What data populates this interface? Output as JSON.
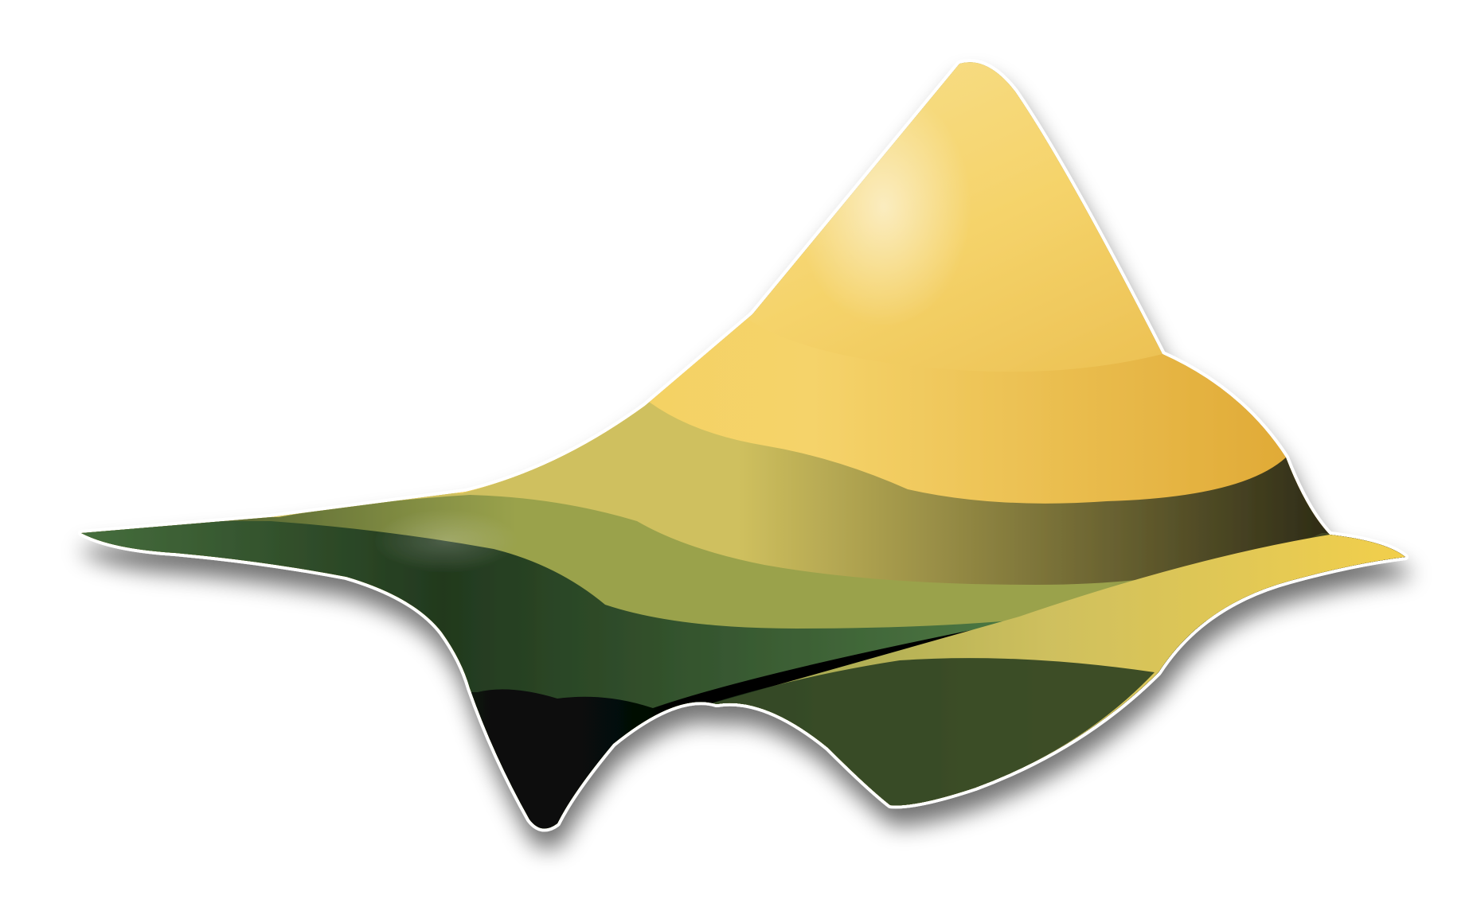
{
  "logo": {
    "semantic": "surface-plot-logo-icon",
    "colors": {
      "peak_highlight": "#fbeeb4",
      "peak_gold": "#f5d36a",
      "peak_amber": "#d89a22",
      "band_yellow": "#f2cf4c",
      "band_olive_light": "#cfc05e",
      "band_olive": "#9aa24c",
      "band_green": "#4e7a44",
      "band_dark_green": "#22391e",
      "shadow_black": "#050604",
      "base_teal": "#15302e",
      "outline": "#ffffff"
    }
  }
}
